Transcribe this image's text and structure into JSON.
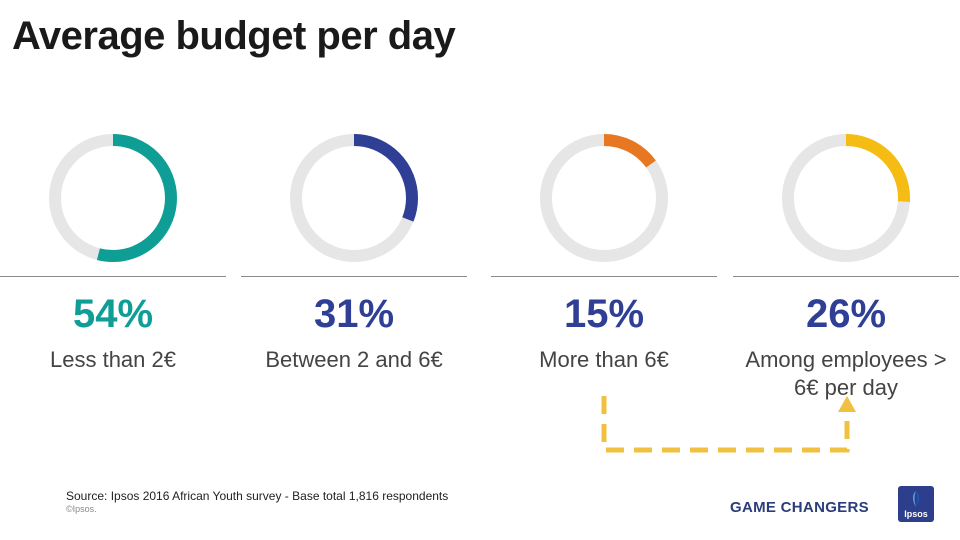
{
  "title": "Average budget per day",
  "chart_data": {
    "type": "donut",
    "items": [
      {
        "value": 54,
        "percent_label": "54%",
        "label": "Less than 2€",
        "color": "#0e9e96"
      },
      {
        "value": 31,
        "percent_label": "31%",
        "label": "Between 2 and 6€",
        "color": "#2e3f95"
      },
      {
        "value": 15,
        "percent_label": "15%",
        "label": "More than 6€",
        "color": "#e87722"
      },
      {
        "value": 26,
        "percent_label": "26%",
        "label": "Among employees > 6€ per day",
        "color": "#f5bd13"
      }
    ],
    "track_color": "#e6e6e6",
    "percent_colors": [
      "#0e9e96",
      "#2e3f95",
      "#2e3f95",
      "#2e3f95"
    ],
    "connector_color": "#f0c040"
  },
  "footer": {
    "source": "Source: Ipsos  2016 African Youth survey - Base total 1,816 respondents",
    "copyright": "©Ipsos.",
    "brand": "GAME CHANGERS",
    "logo_text": "Ipsos"
  }
}
